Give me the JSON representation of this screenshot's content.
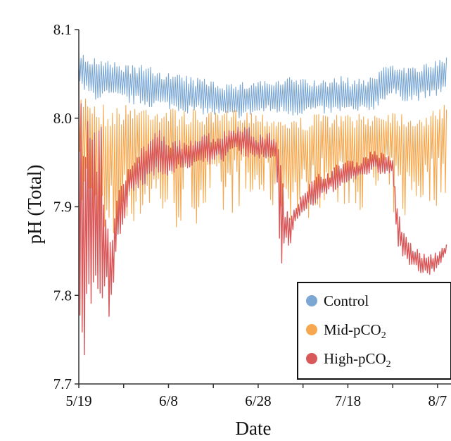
{
  "chart_data": {
    "type": "line",
    "title": "",
    "xlabel": "Date",
    "ylabel": "pH (Total)",
    "xlim": [
      "2016-05-19",
      "2016-08-10"
    ],
    "ylim": [
      7.7,
      8.1
    ],
    "yticks": [
      7.7,
      7.8,
      7.9,
      8.0,
      8.1
    ],
    "ytick_labels": [
      "7.7",
      "7.8",
      "7.9",
      "8.0",
      "8.1"
    ],
    "xticks": [
      "2016-05-19",
      "2016-06-08",
      "2016-06-28",
      "2016-07-18",
      "2016-08-07"
    ],
    "xtick_labels": [
      "5/19",
      "6/8",
      "6/28",
      "7/18",
      "8/7"
    ],
    "grid": false,
    "legend_position": "bottom-right",
    "colors": {
      "Control": "#7ba7d4",
      "Mid": "#f7a84e",
      "High": "#d9595b"
    },
    "series": [
      {
        "key": "control",
        "name": "Control",
        "name_sub": "",
        "name_suffix": "",
        "color": "#7ba7d4",
        "x": [
          "2016-05-19",
          "2016-05-21",
          "2016-05-23",
          "2016-05-25",
          "2016-05-27",
          "2016-05-29",
          "2016-05-31",
          "2016-06-02",
          "2016-06-04",
          "2016-06-06",
          "2016-06-08",
          "2016-06-10",
          "2016-06-12",
          "2016-06-14",
          "2016-06-16",
          "2016-06-18",
          "2016-06-20",
          "2016-06-22",
          "2016-06-24",
          "2016-06-26",
          "2016-06-28",
          "2016-06-30",
          "2016-07-02",
          "2016-07-04",
          "2016-07-06",
          "2016-07-08",
          "2016-07-10",
          "2016-07-12",
          "2016-07-14",
          "2016-07-16",
          "2016-07-18",
          "2016-07-20",
          "2016-07-22",
          "2016-07-24",
          "2016-07-26",
          "2016-07-28",
          "2016-07-30",
          "2016-08-01",
          "2016-08-03",
          "2016-08-05",
          "2016-08-07",
          "2016-08-09"
        ],
        "high": [
          8.075,
          8.07,
          8.068,
          8.065,
          8.064,
          8.062,
          8.06,
          8.06,
          8.058,
          8.055,
          8.052,
          8.05,
          8.048,
          8.045,
          8.046,
          8.044,
          8.042,
          8.04,
          8.04,
          8.042,
          8.044,
          8.044,
          8.042,
          8.045,
          8.048,
          8.046,
          8.044,
          8.042,
          8.045,
          8.048,
          8.046,
          8.044,
          8.046,
          8.05,
          8.06,
          8.065,
          8.06,
          8.058,
          8.06,
          8.062,
          8.065,
          8.07
        ],
        "low": [
          8.035,
          8.025,
          8.02,
          8.022,
          8.02,
          8.018,
          8.015,
          8.015,
          8.012,
          8.012,
          8.01,
          8.008,
          8.006,
          8.005,
          8.004,
          8.002,
          8.0,
          7.998,
          8.0,
          8.002,
          8.004,
          8.006,
          8.005,
          8.004,
          8.002,
          8.004,
          8.006,
          8.005,
          8.004,
          8.005,
          8.006,
          8.004,
          8.006,
          8.01,
          8.02,
          8.025,
          8.02,
          8.018,
          8.02,
          8.022,
          8.025,
          8.03
        ]
      },
      {
        "key": "mid",
        "name": "Mid-pCO",
        "name_sub": "2",
        "name_suffix": "",
        "color": "#f7a84e",
        "x": [
          "2016-05-19",
          "2016-05-21",
          "2016-05-23",
          "2016-05-25",
          "2016-05-27",
          "2016-05-29",
          "2016-05-31",
          "2016-06-02",
          "2016-06-04",
          "2016-06-06",
          "2016-06-08",
          "2016-06-10",
          "2016-06-12",
          "2016-06-14",
          "2016-06-16",
          "2016-06-18",
          "2016-06-20",
          "2016-06-22",
          "2016-06-24",
          "2016-06-26",
          "2016-06-28",
          "2016-06-30",
          "2016-07-02",
          "2016-07-04",
          "2016-07-06",
          "2016-07-08",
          "2016-07-10",
          "2016-07-12",
          "2016-07-14",
          "2016-07-16",
          "2016-07-18",
          "2016-07-20",
          "2016-07-22",
          "2016-07-24",
          "2016-07-26",
          "2016-07-28",
          "2016-07-30",
          "2016-08-01",
          "2016-08-03",
          "2016-08-05",
          "2016-08-07",
          "2016-08-09"
        ],
        "high": [
          8.025,
          8.03,
          8.02,
          8.018,
          8.015,
          8.015,
          8.018,
          8.016,
          8.015,
          8.014,
          8.012,
          8.012,
          8.01,
          8.01,
          8.008,
          8.006,
          8.008,
          8.01,
          8.012,
          8.01,
          8.008,
          8.006,
          8.004,
          8.002,
          8.0,
          8.002,
          8.004,
          8.006,
          8.005,
          8.004,
          8.006,
          8.004,
          8.006,
          8.008,
          8.01,
          8.012,
          8.008,
          8.006,
          8.004,
          8.006,
          8.01,
          8.02
        ],
        "low": [
          7.9,
          7.88,
          7.84,
          7.82,
          7.84,
          7.86,
          7.88,
          7.88,
          7.89,
          7.88,
          7.88,
          7.87,
          7.88,
          7.88,
          7.89,
          7.89,
          7.88,
          7.89,
          7.9,
          7.89,
          7.9,
          7.9,
          7.89,
          7.89,
          7.88,
          7.88,
          7.89,
          7.9,
          7.9,
          7.89,
          7.9,
          7.9,
          7.89,
          7.9,
          7.9,
          7.89,
          7.88,
          7.89,
          7.9,
          7.9,
          7.9,
          7.91
        ]
      },
      {
        "key": "high",
        "name": "High-pCO",
        "name_sub": "2",
        "name_suffix": "",
        "color": "#d9595b",
        "x": [
          "2016-05-19",
          "2016-05-20",
          "2016-05-21",
          "2016-05-22",
          "2016-05-23",
          "2016-05-24",
          "2016-05-25",
          "2016-05-26",
          "2016-05-27",
          "2016-05-28",
          "2016-05-29",
          "2016-05-30",
          "2016-05-31",
          "2016-06-02",
          "2016-06-04",
          "2016-06-06",
          "2016-06-08",
          "2016-06-10",
          "2016-06-12",
          "2016-06-14",
          "2016-06-16",
          "2016-06-18",
          "2016-06-20",
          "2016-06-22",
          "2016-06-24",
          "2016-06-26",
          "2016-06-28",
          "2016-06-30",
          "2016-07-02",
          "2016-07-03",
          "2016-07-04",
          "2016-07-05",
          "2016-07-06",
          "2016-07-08",
          "2016-07-10",
          "2016-07-12",
          "2016-07-14",
          "2016-07-16",
          "2016-07-18",
          "2016-07-20",
          "2016-07-22",
          "2016-07-24",
          "2016-07-26",
          "2016-07-28",
          "2016-07-29",
          "2016-07-30",
          "2016-08-01",
          "2016-08-03",
          "2016-08-05",
          "2016-08-07",
          "2016-08-09"
        ],
        "high": [
          8.06,
          8.04,
          8.02,
          8.01,
          8.005,
          7.99,
          7.9,
          7.88,
          7.9,
          7.92,
          7.93,
          7.95,
          7.96,
          7.97,
          7.98,
          7.99,
          7.97,
          7.98,
          7.97,
          7.98,
          7.99,
          7.98,
          7.985,
          7.99,
          7.995,
          7.99,
          7.98,
          7.985,
          7.98,
          7.96,
          7.9,
          7.89,
          7.9,
          7.92,
          7.93,
          7.94,
          7.94,
          7.95,
          7.955,
          7.95,
          7.96,
          7.965,
          7.96,
          7.955,
          7.9,
          7.88,
          7.86,
          7.85,
          7.845,
          7.85,
          7.86
        ],
        "low": [
          7.8,
          7.71,
          7.76,
          7.8,
          7.74,
          7.76,
          7.8,
          7.76,
          7.82,
          7.86,
          7.88,
          7.9,
          7.91,
          7.92,
          7.93,
          7.94,
          7.93,
          7.94,
          7.94,
          7.95,
          7.94,
          7.95,
          7.95,
          7.96,
          7.96,
          7.95,
          7.95,
          7.955,
          7.95,
          7.82,
          7.86,
          7.85,
          7.88,
          7.89,
          7.9,
          7.905,
          7.915,
          7.92,
          7.925,
          7.93,
          7.935,
          7.94,
          7.93,
          7.94,
          7.86,
          7.84,
          7.83,
          7.825,
          7.82,
          7.83,
          7.845
        ]
      }
    ],
    "legend": [
      {
        "series": "control",
        "label": "Control",
        "sub": "",
        "color": "#7ba7d4"
      },
      {
        "series": "mid",
        "label": "Mid-pCO",
        "sub": "2",
        "color": "#f7a84e"
      },
      {
        "series": "high",
        "label": "High-pCO",
        "sub": "2",
        "color": "#d9595b"
      }
    ]
  }
}
